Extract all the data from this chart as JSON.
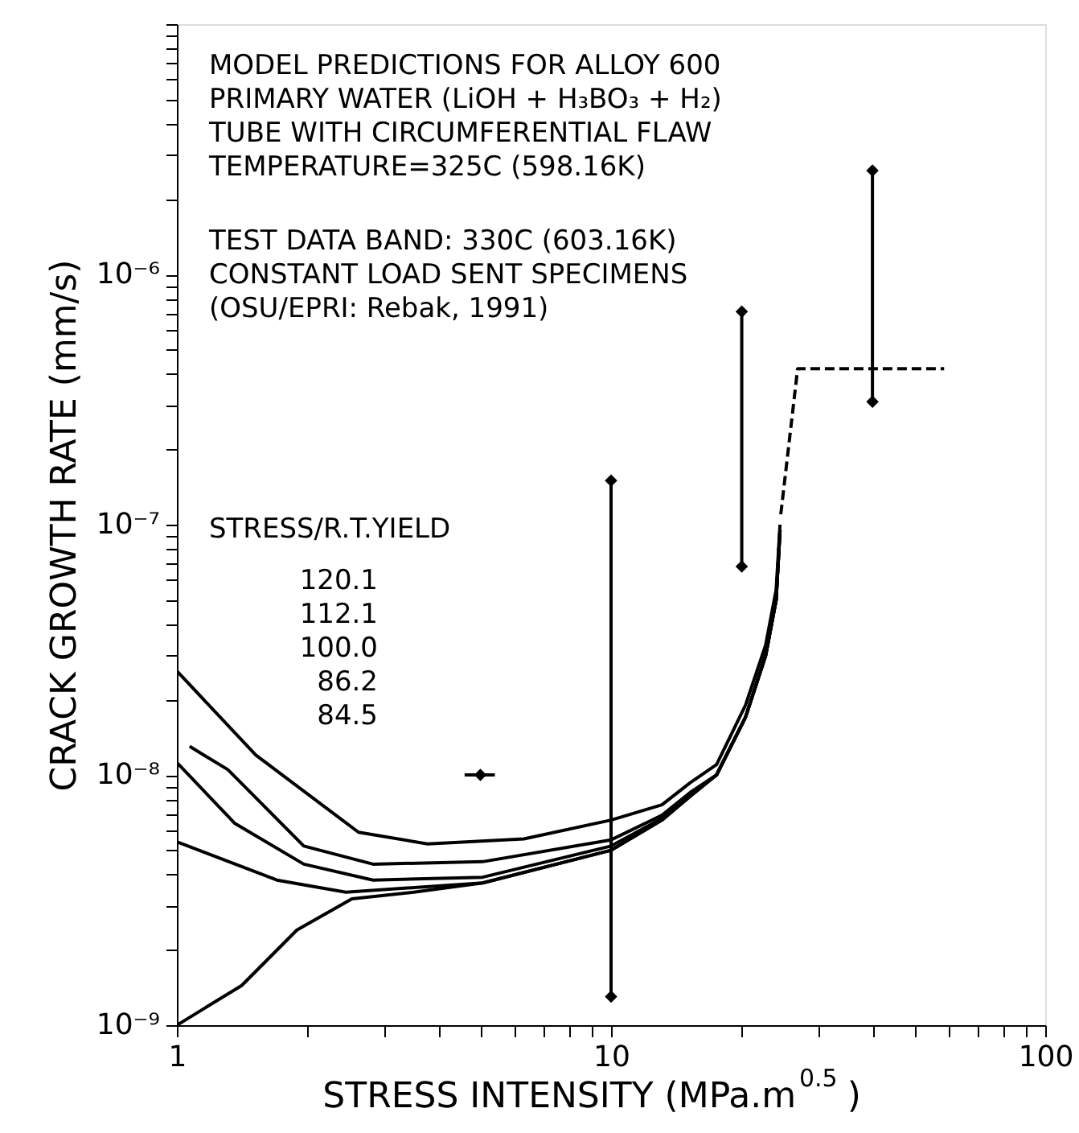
{
  "chart_data": {
    "type": "line",
    "xlabel": "STRESS INTENSITY (MPa.m$^{0.5}$)",
    "ylabel": "CRACK GROWTH RATE (mm/s)",
    "log": "xy",
    "grid": false,
    "marker": "none",
    "line_style": "solid",
    "xlim": [
      1,
      100
    ],
    "ylim": [
      1e-09,
      1e-05
    ],
    "xticks": [
      1,
      {
        "value": 2,
        "label": null
      },
      {
        "value": 3,
        "label": null
      },
      {
        "value": 4,
        "label": null
      },
      {
        "value": 5,
        "label": null
      },
      {
        "value": 6,
        "label": null
      },
      {
        "value": 7,
        "label": null
      },
      {
        "value": 8,
        "label": null
      },
      {
        "value": 9,
        "label": null
      },
      10,
      {
        "value": 20,
        "label": null
      },
      {
        "value": 30,
        "label": null
      },
      {
        "value": 40,
        "label": null
      },
      {
        "value": 50,
        "label": null
      },
      {
        "value": 60,
        "label": null
      },
      {
        "value": 70,
        "label": null
      },
      {
        "value": 80,
        "label": null
      },
      {
        "value": 90,
        "label": null
      },
      100
    ],
    "yticks": [
      {
        "value": 1e-09,
        "label": "10⁻⁹"
      },
      {
        "value": 2e-09,
        "label": null
      },
      {
        "value": 3e-09,
        "label": null
      },
      {
        "value": 4e-09,
        "label": null
      },
      {
        "value": 5e-09,
        "label": null
      },
      {
        "value": 6e-09,
        "label": null
      },
      {
        "value": 7e-09,
        "label": null
      },
      {
        "value": 8e-09,
        "label": null
      },
      {
        "value": 9e-09,
        "label": null
      },
      {
        "value": 1e-08,
        "label": "10⁻⁸"
      },
      {
        "value": 2e-08,
        "label": null
      },
      {
        "value": 3e-08,
        "label": null
      },
      {
        "value": 4e-08,
        "label": null
      },
      {
        "value": 5e-08,
        "label": null
      },
      {
        "value": 6e-08,
        "label": null
      },
      {
        "value": 7e-08,
        "label": null
      },
      {
        "value": 8e-08,
        "label": null
      },
      {
        "value": 9e-08,
        "label": null
      },
      {
        "value": 1e-07,
        "label": "10⁻⁷"
      },
      {
        "value": 2e-07,
        "label": null
      },
      {
        "value": 3e-07,
        "label": null
      },
      {
        "value": 4e-07,
        "label": null
      },
      {
        "value": 5e-07,
        "label": null
      },
      {
        "value": 6e-07,
        "label": null
      },
      {
        "value": 7e-07,
        "label": null
      },
      {
        "value": 8e-07,
        "label": null
      },
      {
        "value": 9e-07,
        "label": null
      },
      {
        "value": 1e-06,
        "label": "10⁻⁶"
      },
      {
        "value": 2e-06,
        "label": null
      },
      {
        "value": 3e-06,
        "label": null
      },
      {
        "value": 4e-06,
        "label": null
      },
      {
        "value": 5e-06,
        "label": null
      },
      {
        "value": 6e-06,
        "label": null
      },
      {
        "value": 7e-06,
        "label": null
      },
      {
        "value": 8e-06,
        "label": null
      },
      {
        "value": 9e-06,
        "label": null
      },
      {
        "value": 1e-05,
        "label": null
      }
    ],
    "series": [
      {
        "color": "#000000",
        "x": [
          1,
          1.52,
          2.62,
          3.78,
          6.3,
          10,
          13.1,
          15.2,
          17.5,
          20.4,
          22.7,
          24,
          24.5
        ],
        "values": [
          2.6e-08,
          1.2e-08,
          5.9e-09,
          5.3e-09,
          5.55e-09,
          6.6e-09,
          7.6e-09,
          9.3e-09,
          1.1e-08,
          1.9e-08,
          3.3e-08,
          5.5e-08,
          1e-07
        ]
      },
      {
        "color": "#000000",
        "x": [
          1.07,
          1.31,
          1.96,
          2.83,
          5.06,
          10,
          13.1,
          15.2,
          17.5,
          20.4,
          22.7,
          24,
          24.5
        ],
        "values": [
          1.3e-08,
          1.05e-08,
          5.2e-09,
          4.4e-09,
          4.5e-09,
          5.5e-09,
          6.9e-09,
          8.5e-09,
          1e-08,
          1.7e-08,
          3e-08,
          5e-08,
          9.5e-08
        ]
      },
      {
        "color": "#000000",
        "x": [
          1,
          1.36,
          1.96,
          2.83,
          5.06,
          10,
          13.1,
          15.2,
          17.5,
          20.4,
          22.7,
          24,
          24.5
        ],
        "values": [
          1.12e-08,
          6.4e-09,
          4.4e-09,
          3.8e-09,
          3.9e-09,
          5.2e-09,
          6.7e-09,
          8.3e-09,
          1e-08,
          1.7e-08,
          3e-08,
          5e-08,
          9.5e-08
        ]
      },
      {
        "color": "#000000",
        "x": [
          1,
          1.7,
          2.45,
          5.06,
          10,
          13.1,
          15.2,
          17.5,
          20.4,
          22.7,
          24,
          24.5
        ],
        "values": [
          5.4e-09,
          3.8e-09,
          3.4e-09,
          3.7e-09,
          5e-09,
          6.6e-09,
          8.2e-09,
          1e-08,
          1.7e-08,
          3e-08,
          5e-08,
          9.5e-08
        ]
      },
      {
        "color": "#000000",
        "x": [
          1,
          1.41,
          1.89,
          2.53,
          3.51,
          5.06,
          10,
          13.1,
          15.2,
          17.5,
          20.4,
          22.7,
          24,
          24.5
        ],
        "values": [
          1e-09,
          1.44e-09,
          2.4e-09,
          3.2e-09,
          3.4e-09,
          3.7e-09,
          5e-09,
          6.6e-09,
          8.2e-09,
          1e-08,
          1.7e-08,
          3e-08,
          5e-08,
          9.5e-08
        ]
      },
      {
        "color": "#000000",
        "line_style": "dashed",
        "x": [
          24.6,
          26.9,
          58.5
        ],
        "values": [
          1.1e-07,
          4.2e-07,
          4.2e-07
        ]
      },
      {
        "type": "scatter",
        "color": "#000000",
        "marker": "diamond",
        "x": [
          5
        ],
        "values": [
          1e-08
        ],
        "xerrors": [
          [
            4.6,
            5.4
          ]
        ]
      },
      {
        "color": "#000000",
        "marker": "diamond",
        "x": [
          10,
          10
        ],
        "values": [
          1.3e-09,
          1.5e-07
        ]
      },
      {
        "color": "#000000",
        "marker": "diamond",
        "x": [
          20,
          20
        ],
        "values": [
          6.8e-08,
          7.1e-07
        ]
      },
      {
        "color": "#000000",
        "marker": "diamond",
        "x": [
          40,
          40
        ],
        "values": [
          3.1e-07,
          2.6e-06
        ]
      }
    ],
    "annotations": [
      "MODEL PREDICTIONS FOR ALLOY 600",
      "PRIMARY WATER (LiOH + H₃BO₃ + H₂)",
      "TUBE WITH CIRCUMFERENTIAL FLAW",
      "TEMPERATURE=325C (598.16K)",
      "TEST DATA BAND: 330C (603.16K)",
      "CONSTANT LOAD SENT SPECIMENS",
      "(OSU/EPRI: Rebak, 1991)",
      "STRESS/R.T.YIELD",
      "120.1",
      "112.1",
      "100.0",
      "86.2",
      "84.5"
    ]
  }
}
